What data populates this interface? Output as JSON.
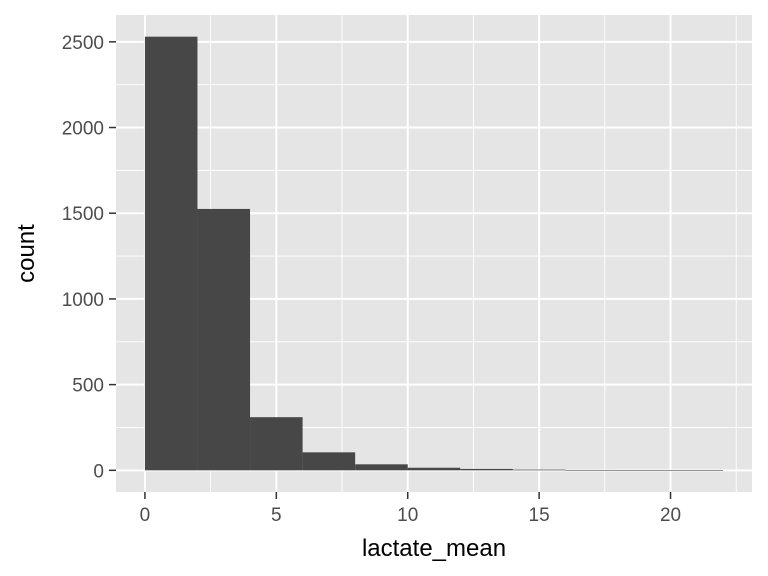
{
  "chart_data": {
    "type": "bar",
    "subtype": "histogram",
    "xlabel": "lactate_mean",
    "ylabel": "count",
    "bin_width": 2,
    "bins": [
      {
        "x0": 0,
        "x1": 2,
        "count": 2530
      },
      {
        "x0": 2,
        "x1": 4,
        "count": 1525
      },
      {
        "x0": 4,
        "x1": 6,
        "count": 310
      },
      {
        "x0": 6,
        "x1": 8,
        "count": 105
      },
      {
        "x0": 8,
        "x1": 10,
        "count": 35
      },
      {
        "x0": 10,
        "x1": 12,
        "count": 15
      },
      {
        "x0": 12,
        "x1": 14,
        "count": 8
      },
      {
        "x0": 14,
        "x1": 16,
        "count": 4
      },
      {
        "x0": 16,
        "x1": 18,
        "count": 2
      },
      {
        "x0": 18,
        "x1": 20,
        "count": 1
      },
      {
        "x0": 20,
        "x1": 22,
        "count": 1
      }
    ],
    "xlim": [
      -1.1,
      23.1
    ],
    "ylim": [
      -126.5,
      2656.5
    ],
    "x_ticks": [
      0,
      5,
      10,
      15,
      20
    ],
    "y_ticks": [
      0,
      500,
      1000,
      1500,
      2000,
      2500
    ],
    "grid": true,
    "legend": "none",
    "colors": {
      "panel_background": "#e5e5e5",
      "grid": "#ffffff",
      "bar_fill": "#474747",
      "tick_text": "#4d4d4d",
      "tick_mark": "#333333",
      "title_text": "#000000"
    }
  }
}
